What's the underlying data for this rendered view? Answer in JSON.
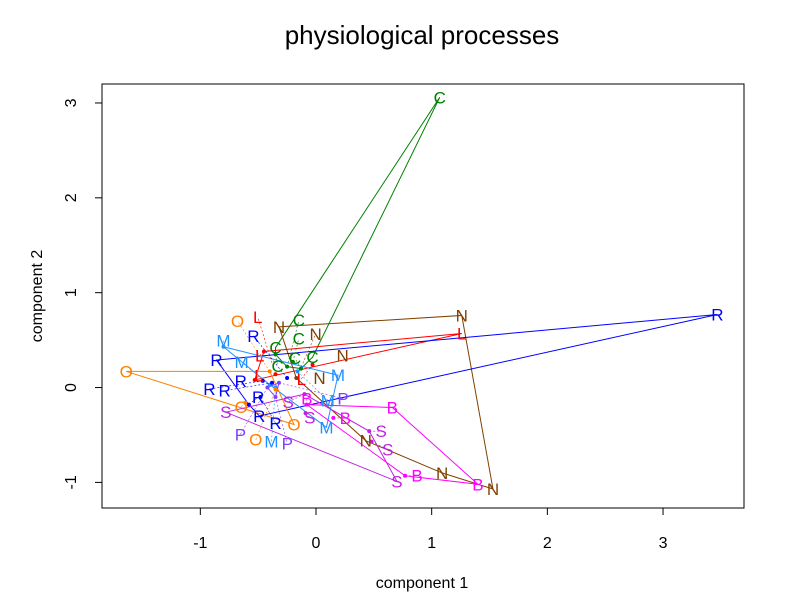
{
  "chart_data": {
    "type": "scatter",
    "title": "physiological processes",
    "xlabel": "component 1",
    "ylabel": "component 2",
    "xlim": [
      -1.85,
      3.7
    ],
    "ylim": [
      -1.27,
      3.2
    ],
    "xticks": [
      -1,
      0,
      1,
      2,
      3
    ],
    "yticks": [
      -1,
      0,
      1,
      2,
      3
    ],
    "grid": false,
    "series": [
      {
        "label": "C",
        "color": "#008000",
        "points": [
          [
            1.07,
            3.06
          ],
          [
            -0.35,
            0.42
          ],
          [
            -0.35,
            0.35
          ],
          [
            -0.2,
            0.27
          ],
          [
            -0.03,
            0.32
          ],
          [
            -0.13,
            0.2
          ],
          [
            -0.25,
            0.22
          ]
        ]
      },
      {
        "label": "N",
        "color": "#804000",
        "points": [
          [
            -0.32,
            0.64
          ],
          [
            1.26,
            0.76
          ],
          [
            0.23,
            0.34
          ],
          [
            0.03,
            0.1
          ],
          [
            -0.17,
            0.1
          ],
          [
            0.43,
            -0.56
          ],
          [
            1.09,
            -0.9
          ],
          [
            1.53,
            -1.07
          ]
        ]
      },
      {
        "label": "L",
        "color": "#ff0000",
        "points": [
          [
            -0.45,
            0.38
          ],
          [
            1.26,
            0.57
          ],
          [
            -0.03,
            0.24
          ],
          [
            -0.53,
            0.08
          ],
          [
            -0.35,
            0.14
          ]
        ]
      },
      {
        "label": "R",
        "color": "#0000ff",
        "points": [
          [
            3.47,
            0.77
          ],
          [
            -0.86,
            0.29
          ],
          [
            -0.65,
            0.07
          ],
          [
            -0.48,
            -0.1
          ],
          [
            -0.49,
            -0.3
          ],
          [
            -0.58,
            -0.18
          ],
          [
            -0.25,
            0.1
          ],
          [
            -0.46,
            0.07
          ],
          [
            -0.38,
            0.05
          ]
        ]
      },
      {
        "label": "M",
        "color": "#1e90ff",
        "points": [
          [
            -0.8,
            0.43
          ],
          [
            0.19,
            0.13
          ],
          [
            0.09,
            -0.42
          ],
          [
            -0.16,
            0.17
          ],
          [
            -0.4,
            0.03
          ],
          [
            -0.35,
            0.0
          ]
        ]
      },
      {
        "label": "O",
        "color": "#ff8000",
        "points": [
          [
            -1.64,
            0.17
          ],
          [
            -0.61,
            -0.16
          ],
          [
            -0.19,
            -0.39
          ],
          [
            -0.4,
            0.17
          ],
          [
            -0.35,
            -0.02
          ]
        ]
      },
      {
        "label": "P",
        "color": "#8040ff",
        "points": [
          [
            -0.35,
            -0.1
          ],
          [
            -0.42,
            0.0
          ],
          [
            -0.32,
            0.05
          ]
        ]
      },
      {
        "label": "S",
        "color": "#c020e0",
        "points": [
          [
            -0.78,
            -0.26
          ],
          [
            0.7,
            -0.99
          ],
          [
            -0.1,
            -0.07
          ],
          [
            -0.09,
            -0.27
          ],
          [
            0.46,
            -0.46
          ],
          [
            0.48,
            -0.57
          ]
        ]
      },
      {
        "label": "B",
        "color": "#ff00ff",
        "points": [
          [
            0.66,
            -0.21
          ],
          [
            1.4,
            -1.02
          ],
          [
            0.77,
            -0.93
          ],
          [
            0.15,
            -0.32
          ],
          [
            -0.08,
            -0.18
          ]
        ]
      }
    ]
  }
}
